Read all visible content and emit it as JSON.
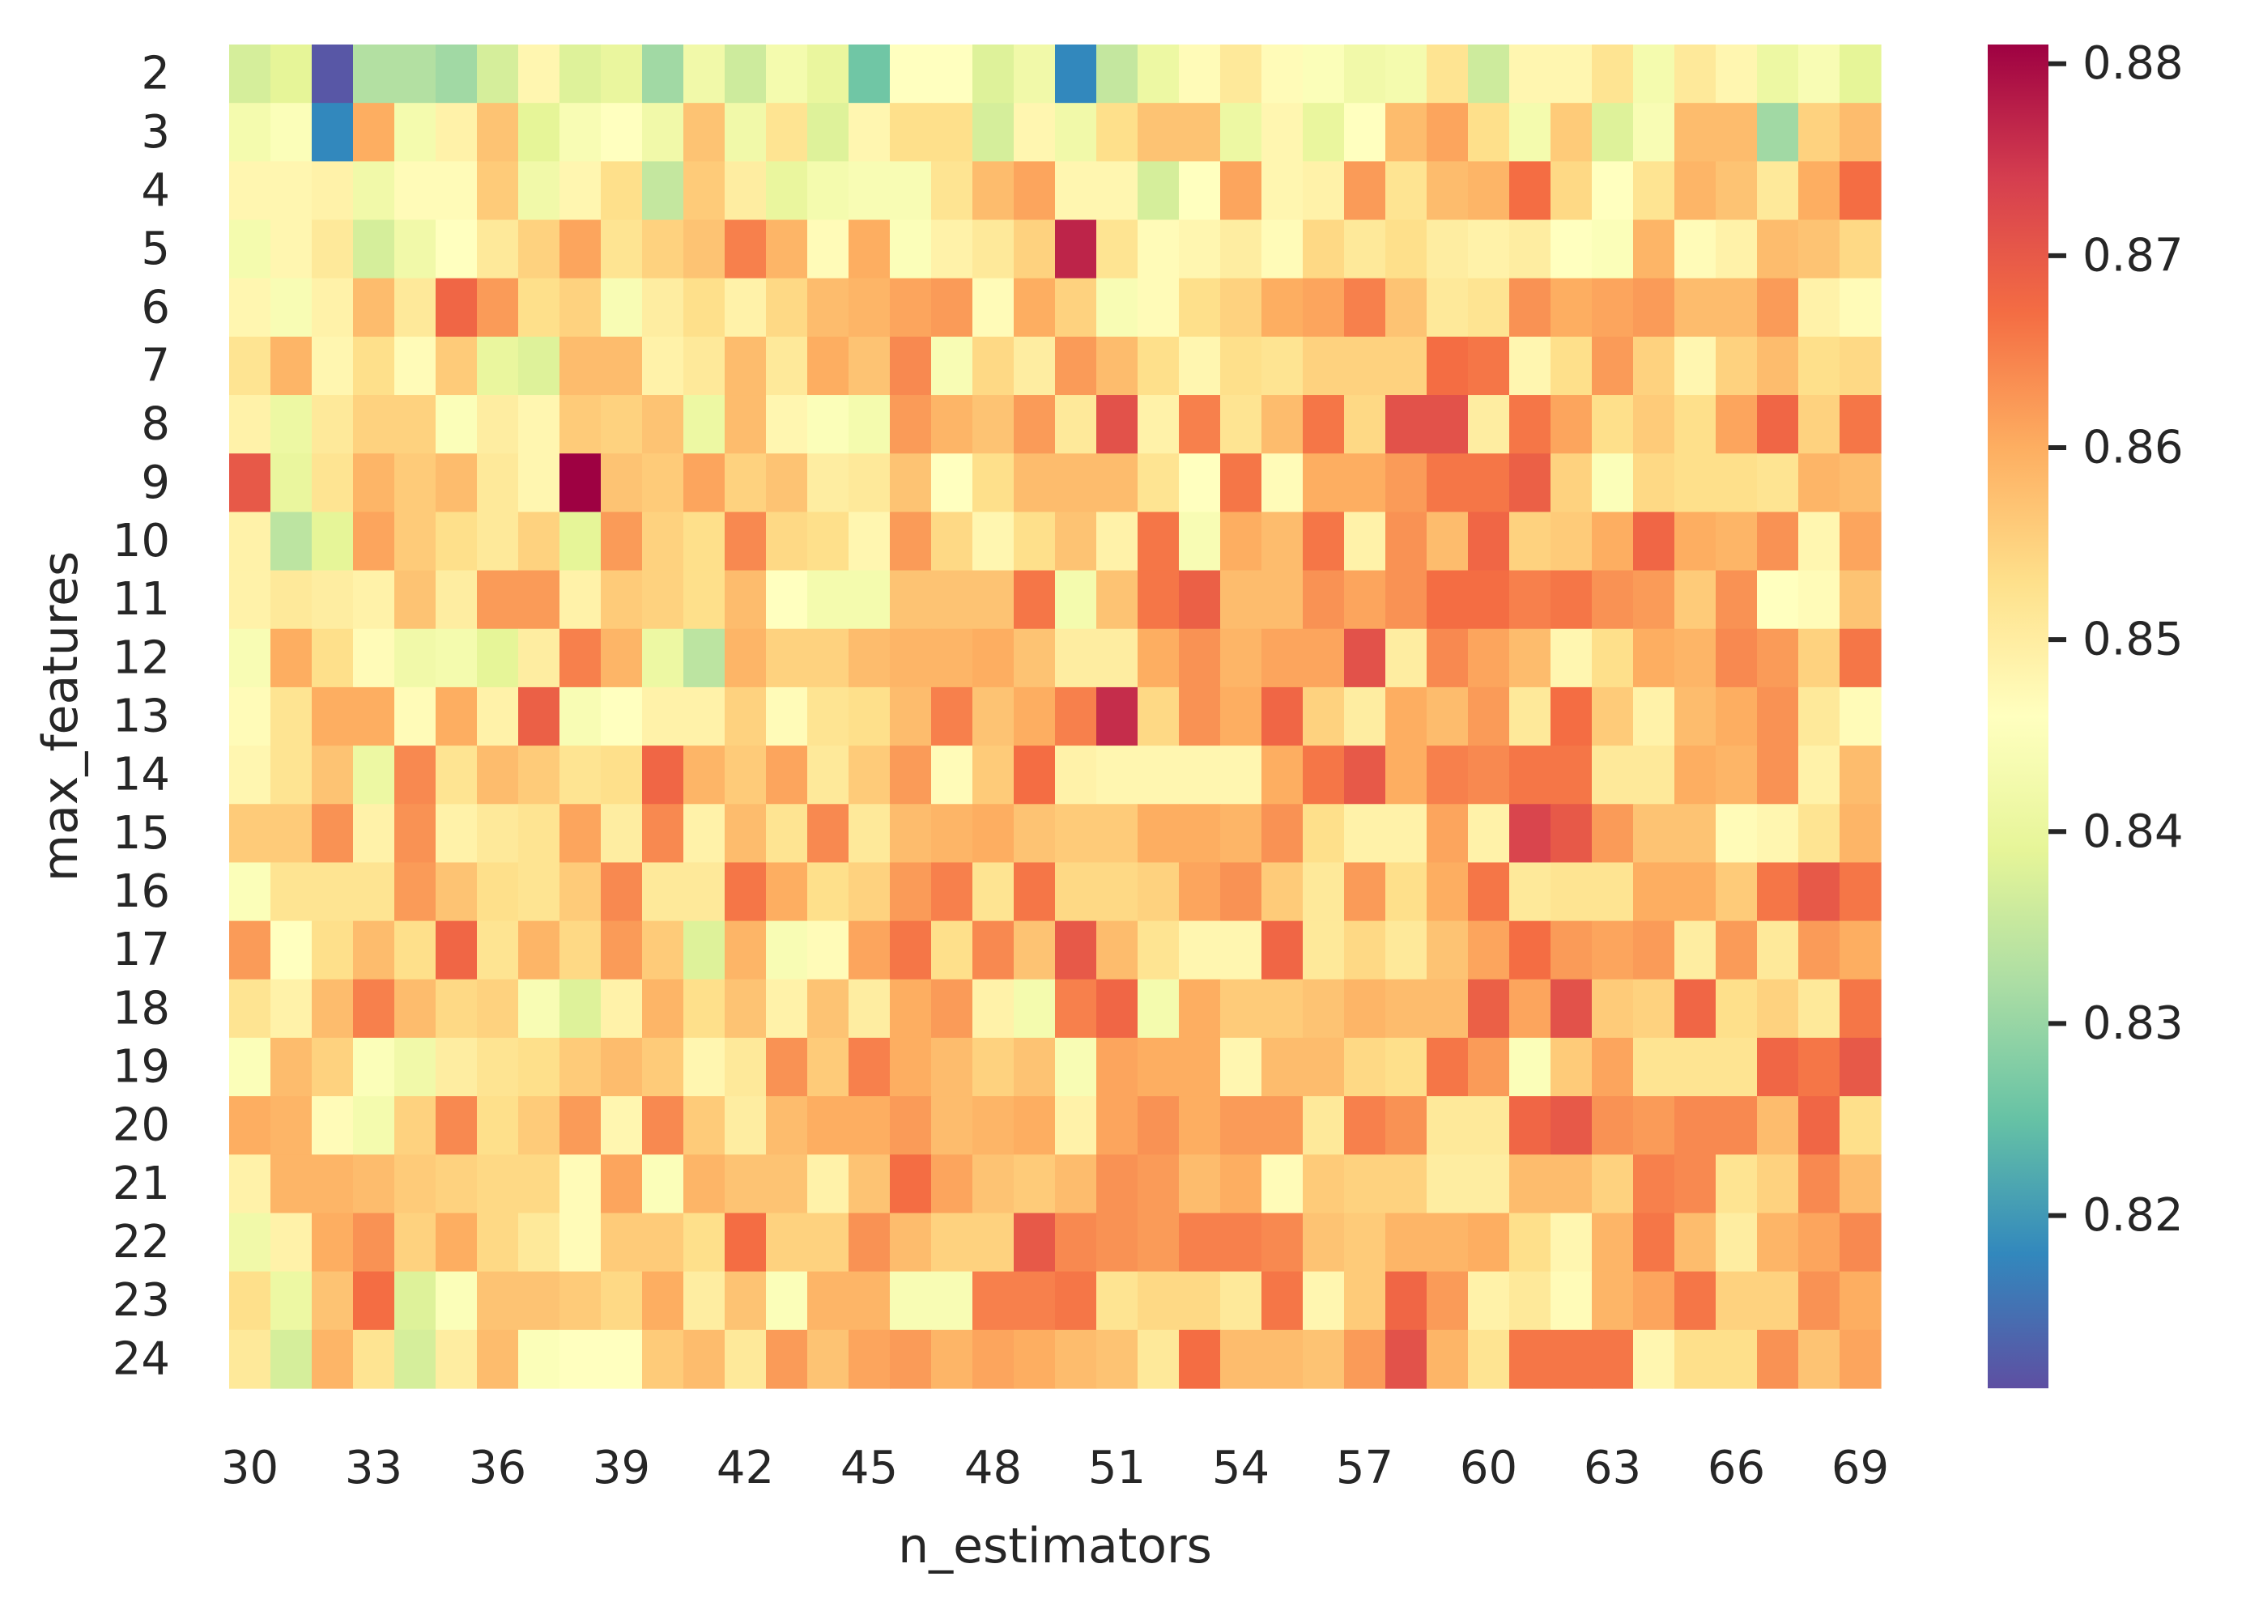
{
  "chart_data": {
    "type": "heatmap",
    "xlabel": "n_estimators",
    "ylabel": "max_features",
    "x": [
      30,
      31,
      32,
      33,
      34,
      35,
      36,
      37,
      38,
      39,
      40,
      41,
      42,
      43,
      44,
      45,
      46,
      47,
      48,
      49,
      50,
      51,
      52,
      53,
      54,
      55,
      56,
      57,
      58,
      59,
      60,
      61,
      62,
      63,
      64,
      65,
      66,
      67,
      68,
      69
    ],
    "x_tick_labels": [
      "30",
      "33",
      "36",
      "39",
      "42",
      "45",
      "48",
      "51",
      "54",
      "57",
      "60",
      "63",
      "66",
      "69"
    ],
    "y": [
      2,
      3,
      4,
      5,
      6,
      7,
      8,
      9,
      10,
      11,
      12,
      13,
      14,
      15,
      16,
      17,
      18,
      19,
      20,
      21,
      22,
      23,
      24
    ],
    "y_tick_labels": [
      "2",
      "3",
      "4",
      "5",
      "6",
      "7",
      "8",
      "9",
      "10",
      "11",
      "12",
      "13",
      "14",
      "15",
      "16",
      "17",
      "18",
      "19",
      "20",
      "21",
      "22",
      "23",
      "24"
    ],
    "colormap": "Spectral_r",
    "colorbar": {
      "vmin": 0.811,
      "vmax": 0.881,
      "ticks": [
        0.82,
        0.83,
        0.84,
        0.85,
        0.86,
        0.87,
        0.88
      ],
      "tick_labels": [
        "0.82",
        "0.83",
        "0.84",
        "0.85",
        "0.86",
        "0.87",
        "0.88"
      ]
    },
    "grid": false,
    "values": [
      [
        0.837,
        0.839,
        0.812,
        0.833,
        0.833,
        0.831,
        0.837,
        0.848,
        0.838,
        0.84,
        0.831,
        0.842,
        0.836,
        0.843,
        0.84,
        0.826,
        0.846,
        0.846,
        0.838,
        0.842,
        0.818,
        0.835,
        0.841,
        0.847,
        0.851,
        0.847,
        0.845,
        0.842,
        0.843,
        0.852,
        0.836,
        0.848,
        0.848,
        0.852,
        0.843,
        0.851,
        0.848,
        0.841,
        0.844,
        0.839
      ],
      [
        0.843,
        0.845,
        0.818,
        0.86,
        0.843,
        0.849,
        0.857,
        0.839,
        0.844,
        0.846,
        0.842,
        0.857,
        0.842,
        0.852,
        0.838,
        0.848,
        0.853,
        0.853,
        0.837,
        0.848,
        0.842,
        0.853,
        0.857,
        0.857,
        0.841,
        0.848,
        0.84,
        0.846,
        0.858,
        0.861,
        0.853,
        0.843,
        0.856,
        0.838,
        0.844,
        0.858,
        0.858,
        0.831,
        0.855,
        0.858
      ],
      [
        0.848,
        0.848,
        0.849,
        0.842,
        0.847,
        0.847,
        0.856,
        0.842,
        0.848,
        0.853,
        0.835,
        0.856,
        0.85,
        0.84,
        0.843,
        0.844,
        0.844,
        0.852,
        0.858,
        0.861,
        0.848,
        0.848,
        0.837,
        0.846,
        0.861,
        0.848,
        0.849,
        0.862,
        0.852,
        0.858,
        0.859,
        0.867,
        0.854,
        0.846,
        0.852,
        0.859,
        0.857,
        0.851,
        0.86,
        0.867
      ],
      [
        0.843,
        0.848,
        0.851,
        0.837,
        0.842,
        0.846,
        0.851,
        0.855,
        0.861,
        0.852,
        0.855,
        0.857,
        0.865,
        0.859,
        0.847,
        0.86,
        0.845,
        0.849,
        0.851,
        0.855,
        0.877,
        0.852,
        0.847,
        0.848,
        0.85,
        0.847,
        0.854,
        0.851,
        0.853,
        0.85,
        0.849,
        0.85,
        0.846,
        0.845,
        0.859,
        0.847,
        0.849,
        0.858,
        0.857,
        0.854
      ],
      [
        0.848,
        0.844,
        0.849,
        0.858,
        0.851,
        0.868,
        0.862,
        0.853,
        0.855,
        0.844,
        0.85,
        0.853,
        0.849,
        0.854,
        0.858,
        0.859,
        0.861,
        0.862,
        0.847,
        0.86,
        0.855,
        0.844,
        0.847,
        0.853,
        0.855,
        0.86,
        0.861,
        0.865,
        0.857,
        0.851,
        0.852,
        0.863,
        0.86,
        0.861,
        0.862,
        0.858,
        0.858,
        0.862,
        0.849,
        0.847
      ],
      [
        0.852,
        0.859,
        0.848,
        0.853,
        0.847,
        0.856,
        0.84,
        0.838,
        0.858,
        0.858,
        0.849,
        0.851,
        0.858,
        0.851,
        0.86,
        0.857,
        0.864,
        0.844,
        0.854,
        0.85,
        0.862,
        0.858,
        0.853,
        0.848,
        0.853,
        0.852,
        0.855,
        0.855,
        0.855,
        0.867,
        0.866,
        0.848,
        0.853,
        0.862,
        0.855,
        0.848,
        0.855,
        0.858,
        0.853,
        0.854
      ],
      [
        0.849,
        0.841,
        0.851,
        0.855,
        0.855,
        0.845,
        0.85,
        0.848,
        0.856,
        0.855,
        0.857,
        0.841,
        0.858,
        0.848,
        0.845,
        0.843,
        0.862,
        0.859,
        0.857,
        0.862,
        0.851,
        0.871,
        0.849,
        0.865,
        0.852,
        0.858,
        0.866,
        0.854,
        0.871,
        0.871,
        0.85,
        0.866,
        0.861,
        0.853,
        0.856,
        0.853,
        0.861,
        0.868,
        0.855,
        0.866
      ],
      [
        0.87,
        0.84,
        0.852,
        0.859,
        0.856,
        0.858,
        0.851,
        0.848,
        0.881,
        0.857,
        0.856,
        0.861,
        0.855,
        0.857,
        0.85,
        0.851,
        0.857,
        0.846,
        0.853,
        0.858,
        0.858,
        0.858,
        0.852,
        0.846,
        0.866,
        0.847,
        0.86,
        0.86,
        0.862,
        0.866,
        0.866,
        0.869,
        0.855,
        0.845,
        0.854,
        0.853,
        0.853,
        0.852,
        0.859,
        0.858
      ],
      [
        0.849,
        0.834,
        0.839,
        0.861,
        0.856,
        0.853,
        0.851,
        0.855,
        0.839,
        0.862,
        0.855,
        0.853,
        0.864,
        0.854,
        0.853,
        0.848,
        0.862,
        0.854,
        0.848,
        0.853,
        0.857,
        0.849,
        0.866,
        0.844,
        0.86,
        0.858,
        0.866,
        0.849,
        0.863,
        0.858,
        0.868,
        0.855,
        0.856,
        0.86,
        0.868,
        0.86,
        0.859,
        0.863,
        0.848,
        0.861
      ],
      [
        0.849,
        0.851,
        0.85,
        0.849,
        0.857,
        0.85,
        0.862,
        0.862,
        0.849,
        0.856,
        0.855,
        0.853,
        0.858,
        0.846,
        0.843,
        0.843,
        0.857,
        0.857,
        0.857,
        0.866,
        0.843,
        0.857,
        0.866,
        0.869,
        0.858,
        0.858,
        0.863,
        0.861,
        0.863,
        0.867,
        0.867,
        0.865,
        0.866,
        0.863,
        0.862,
        0.856,
        0.863,
        0.846,
        0.847,
        0.857
      ],
      [
        0.844,
        0.86,
        0.853,
        0.847,
        0.842,
        0.843,
        0.839,
        0.85,
        0.865,
        0.859,
        0.841,
        0.834,
        0.859,
        0.855,
        0.855,
        0.858,
        0.859,
        0.859,
        0.86,
        0.857,
        0.85,
        0.85,
        0.86,
        0.863,
        0.859,
        0.861,
        0.861,
        0.871,
        0.85,
        0.864,
        0.861,
        0.858,
        0.848,
        0.853,
        0.86,
        0.859,
        0.864,
        0.862,
        0.855,
        0.866
      ],
      [
        0.847,
        0.852,
        0.86,
        0.86,
        0.847,
        0.86,
        0.849,
        0.869,
        0.844,
        0.846,
        0.849,
        0.849,
        0.855,
        0.847,
        0.852,
        0.853,
        0.858,
        0.865,
        0.857,
        0.86,
        0.865,
        0.876,
        0.854,
        0.863,
        0.86,
        0.868,
        0.855,
        0.85,
        0.86,
        0.858,
        0.862,
        0.851,
        0.867,
        0.856,
        0.849,
        0.858,
        0.86,
        0.863,
        0.851,
        0.847
      ],
      [
        0.848,
        0.852,
        0.857,
        0.841,
        0.864,
        0.852,
        0.858,
        0.856,
        0.852,
        0.853,
        0.868,
        0.859,
        0.856,
        0.861,
        0.851,
        0.856,
        0.862,
        0.847,
        0.856,
        0.867,
        0.849,
        0.848,
        0.848,
        0.848,
        0.848,
        0.86,
        0.866,
        0.87,
        0.86,
        0.865,
        0.864,
        0.866,
        0.866,
        0.851,
        0.851,
        0.86,
        0.859,
        0.863,
        0.849,
        0.858
      ],
      [
        0.856,
        0.856,
        0.863,
        0.849,
        0.863,
        0.849,
        0.851,
        0.852,
        0.861,
        0.85,
        0.864,
        0.849,
        0.858,
        0.852,
        0.864,
        0.851,
        0.858,
        0.859,
        0.86,
        0.857,
        0.856,
        0.856,
        0.86,
        0.86,
        0.859,
        0.863,
        0.853,
        0.849,
        0.849,
        0.861,
        0.849,
        0.873,
        0.87,
        0.862,
        0.857,
        0.857,
        0.847,
        0.848,
        0.852,
        0.859
      ],
      [
        0.845,
        0.852,
        0.852,
        0.852,
        0.862,
        0.857,
        0.853,
        0.852,
        0.856,
        0.864,
        0.851,
        0.851,
        0.866,
        0.86,
        0.853,
        0.855,
        0.862,
        0.865,
        0.852,
        0.866,
        0.854,
        0.854,
        0.855,
        0.861,
        0.863,
        0.856,
        0.851,
        0.862,
        0.853,
        0.86,
        0.866,
        0.851,
        0.852,
        0.852,
        0.86,
        0.86,
        0.856,
        0.866,
        0.87,
        0.866
      ],
      [
        0.862,
        0.846,
        0.853,
        0.858,
        0.853,
        0.868,
        0.852,
        0.859,
        0.854,
        0.862,
        0.856,
        0.838,
        0.859,
        0.844,
        0.847,
        0.861,
        0.866,
        0.853,
        0.864,
        0.857,
        0.87,
        0.858,
        0.852,
        0.848,
        0.848,
        0.868,
        0.851,
        0.854,
        0.851,
        0.857,
        0.861,
        0.867,
        0.862,
        0.861,
        0.862,
        0.85,
        0.862,
        0.851,
        0.862,
        0.86
      ],
      [
        0.852,
        0.849,
        0.858,
        0.865,
        0.858,
        0.854,
        0.855,
        0.844,
        0.838,
        0.849,
        0.859,
        0.853,
        0.857,
        0.849,
        0.857,
        0.85,
        0.86,
        0.862,
        0.849,
        0.843,
        0.865,
        0.868,
        0.843,
        0.86,
        0.856,
        0.856,
        0.857,
        0.859,
        0.858,
        0.858,
        0.869,
        0.861,
        0.871,
        0.856,
        0.855,
        0.868,
        0.853,
        0.855,
        0.851,
        0.866
      ],
      [
        0.845,
        0.858,
        0.855,
        0.845,
        0.842,
        0.85,
        0.852,
        0.853,
        0.856,
        0.858,
        0.856,
        0.848,
        0.851,
        0.863,
        0.856,
        0.865,
        0.86,
        0.858,
        0.855,
        0.857,
        0.844,
        0.861,
        0.86,
        0.86,
        0.848,
        0.858,
        0.858,
        0.854,
        0.853,
        0.866,
        0.862,
        0.845,
        0.856,
        0.861,
        0.852,
        0.852,
        0.852,
        0.868,
        0.866,
        0.87
      ],
      [
        0.86,
        0.859,
        0.847,
        0.843,
        0.855,
        0.864,
        0.853,
        0.856,
        0.862,
        0.848,
        0.864,
        0.856,
        0.85,
        0.858,
        0.86,
        0.86,
        0.862,
        0.858,
        0.859,
        0.86,
        0.849,
        0.861,
        0.863,
        0.86,
        0.862,
        0.862,
        0.851,
        0.865,
        0.863,
        0.851,
        0.851,
        0.868,
        0.87,
        0.863,
        0.862,
        0.864,
        0.864,
        0.858,
        0.868,
        0.853
      ],
      [
        0.849,
        0.859,
        0.859,
        0.858,
        0.856,
        0.855,
        0.854,
        0.854,
        0.847,
        0.861,
        0.845,
        0.859,
        0.857,
        0.857,
        0.849,
        0.857,
        0.867,
        0.861,
        0.857,
        0.856,
        0.858,
        0.863,
        0.862,
        0.858,
        0.86,
        0.847,
        0.856,
        0.855,
        0.855,
        0.85,
        0.85,
        0.858,
        0.858,
        0.855,
        0.865,
        0.864,
        0.852,
        0.855,
        0.864,
        0.858
      ],
      [
        0.842,
        0.849,
        0.86,
        0.863,
        0.855,
        0.86,
        0.854,
        0.851,
        0.847,
        0.856,
        0.856,
        0.853,
        0.867,
        0.855,
        0.855,
        0.863,
        0.858,
        0.855,
        0.855,
        0.87,
        0.864,
        0.863,
        0.862,
        0.865,
        0.865,
        0.864,
        0.857,
        0.856,
        0.859,
        0.859,
        0.86,
        0.853,
        0.848,
        0.859,
        0.866,
        0.858,
        0.85,
        0.859,
        0.861,
        0.864
      ],
      [
        0.853,
        0.841,
        0.857,
        0.867,
        0.838,
        0.845,
        0.857,
        0.857,
        0.856,
        0.854,
        0.86,
        0.85,
        0.857,
        0.845,
        0.859,
        0.859,
        0.844,
        0.844,
        0.865,
        0.865,
        0.866,
        0.852,
        0.854,
        0.854,
        0.851,
        0.866,
        0.848,
        0.856,
        0.868,
        0.862,
        0.849,
        0.851,
        0.847,
        0.859,
        0.861,
        0.866,
        0.855,
        0.855,
        0.863,
        0.86
      ],
      [
        0.851,
        0.837,
        0.859,
        0.852,
        0.837,
        0.85,
        0.858,
        0.845,
        0.846,
        0.846,
        0.856,
        0.858,
        0.851,
        0.862,
        0.857,
        0.861,
        0.862,
        0.859,
        0.861,
        0.86,
        0.858,
        0.857,
        0.851,
        0.867,
        0.858,
        0.858,
        0.857,
        0.862,
        0.871,
        0.859,
        0.852,
        0.866,
        0.866,
        0.866,
        0.848,
        0.853,
        0.853,
        0.863,
        0.857,
        0.861
      ]
    ]
  }
}
